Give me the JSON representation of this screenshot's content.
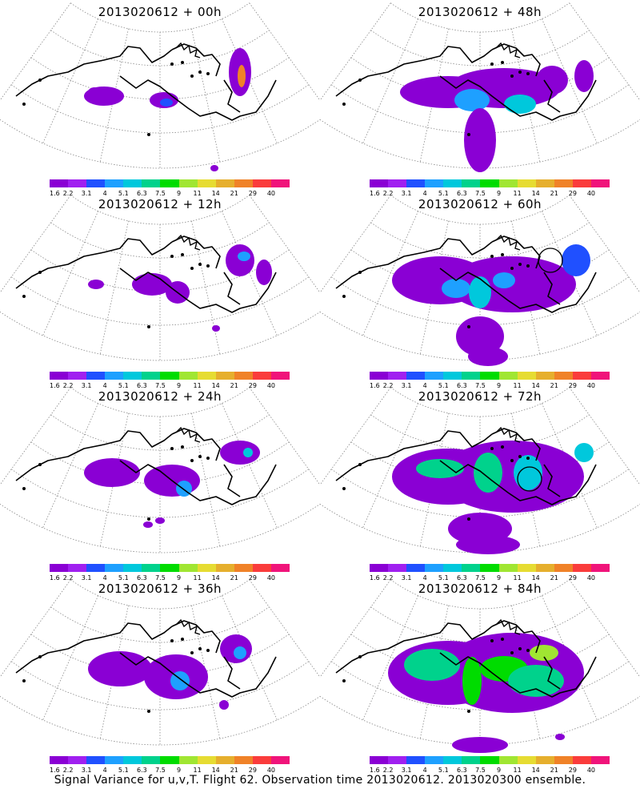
{
  "panels": [
    {
      "id": "p00",
      "title": "2013020612 + 00h"
    },
    {
      "id": "p48",
      "title": "2013020612 + 48h"
    },
    {
      "id": "p12",
      "title": "2013020612 + 12h"
    },
    {
      "id": "p60",
      "title": "2013020612 + 60h"
    },
    {
      "id": "p24",
      "title": "2013020612 + 24h"
    },
    {
      "id": "p72",
      "title": "2013020612 + 72h"
    },
    {
      "id": "p36",
      "title": "2013020612 + 36h"
    },
    {
      "id": "p84",
      "title": "2013020612 + 84h"
    }
  ],
  "colorbar": {
    "colors": [
      "#8a00d4",
      "#a020f0",
      "#2050ff",
      "#1ea0ff",
      "#00c8dc",
      "#00d28c",
      "#00dc00",
      "#a0e632",
      "#e6dc32",
      "#e6af2d",
      "#f08228",
      "#fa3c3c",
      "#f0147a"
    ],
    "labels": [
      "1.6",
      "2.2",
      "3.1",
      "4",
      "5.1",
      "6.3",
      "7.5",
      "9",
      "11",
      "14",
      "21",
      "29",
      "40"
    ]
  },
  "footer": "Signal Variance for u,v,T. Flight 62. Observation time 2013020612. 2013020300 ensemble."
}
